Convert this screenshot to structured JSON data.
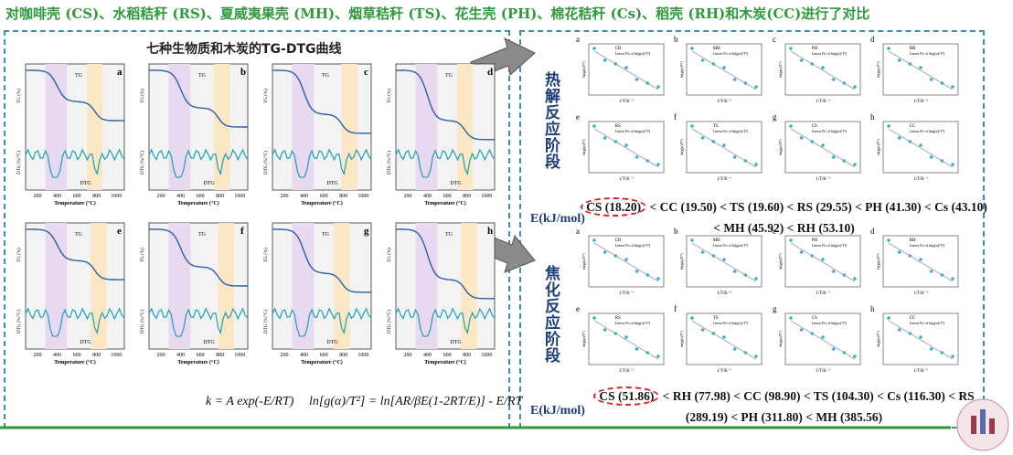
{
  "header": {
    "title": "对咖啡壳 (CS)、水稻秸秆 (RS)、夏威夷果壳 (MH)、烟草秸秆 (TS)、花生壳 (PH)、棉花秸秆 (Cs)、稻壳 (RH)和木炭(CC)进行了对比"
  },
  "tg_dtg": {
    "title": "七种生物质和木炭的TG-DTG曲线",
    "panels": [
      "a",
      "b",
      "c",
      "d",
      "e",
      "f",
      "g",
      "h"
    ],
    "x_label": "Temperature (°C)",
    "tg_label": "TG (%)",
    "dtg_label": "DTG (%/°C)",
    "tg_legend": "TG",
    "dtg_legend": "DTG",
    "x_ticks": [
      "200",
      "400",
      "600",
      "800",
      "1000"
    ],
    "equation_1": "k = A exp(-E/RT)",
    "equation_2": "ln[g(α)/T²] = ln[AR/βE(1-2RT/E)] - E/RT"
  },
  "kinetics": {
    "pyrolysis_label": "热解反应阶段",
    "coking_label": "焦化反应阶段",
    "x_label": "1/T/K⁻¹",
    "y_label": "ln(g(α)/T²)",
    "fit_legend": "Linear Fit of ln(g(α)/T²)",
    "panel_letters": [
      "a",
      "b",
      "c",
      "d",
      "e",
      "f",
      "g",
      "h"
    ],
    "samples": [
      "CH",
      "MH",
      "PH",
      "RH",
      "RS",
      "TS",
      "CS",
      "CC"
    ],
    "energy_label": "E(kJ/mol)",
    "pyrolysis_ranking": {
      "highlight": "CS (18.20)",
      "rest": " < CC (19.50) < TS (19.60) < RS (29.55) < PH (41.30) < Cs (43.10) < MH (45.92) < RH (53.10)"
    },
    "coking_ranking": {
      "highlight": "CS (51.86)",
      "rest": " < RH (77.98) < CC (98.90) < TS (104.30) < Cs (116.30) < RS (289.19) < PH (311.80) < MH (385.56)"
    }
  }
}
